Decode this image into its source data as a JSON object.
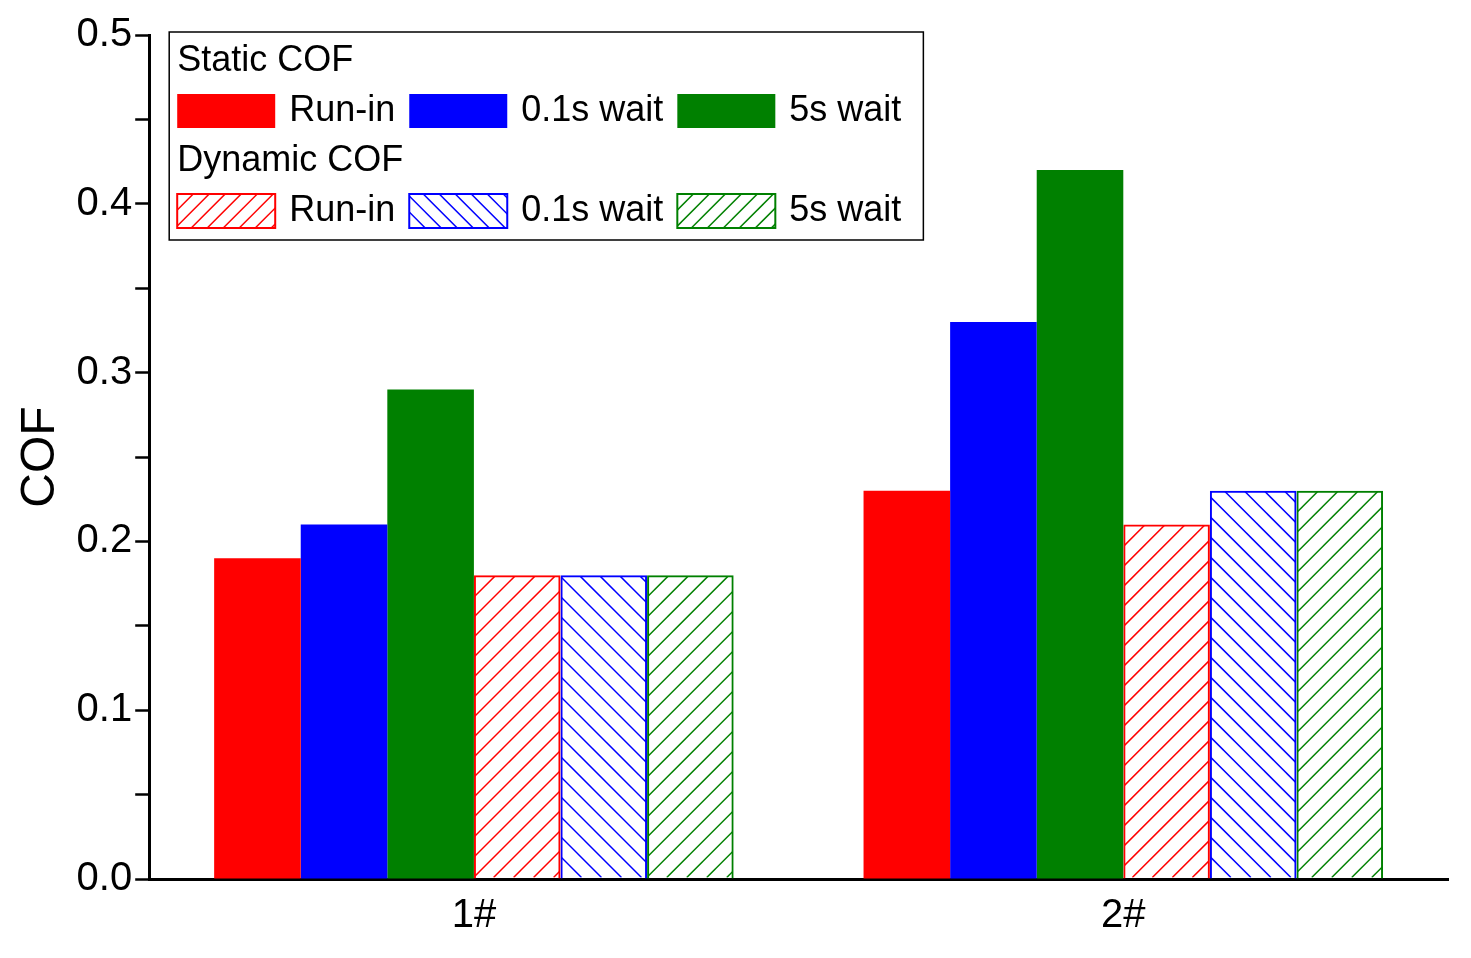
{
  "chart_data": {
    "type": "bar",
    "ylabel": "COF",
    "categories": [
      "1#",
      "2#"
    ],
    "ylim": [
      0,
      0.5
    ],
    "yticks": [
      {
        "value": 0,
        "label": "0.0"
      },
      {
        "value": 0.05,
        "label": null
      },
      {
        "value": 0.1,
        "label": "0.1"
      },
      {
        "value": 0.15,
        "label": null
      },
      {
        "value": 0.2,
        "label": "0.2"
      },
      {
        "value": 0.25,
        "label": null
      },
      {
        "value": 0.3,
        "label": "0.3"
      },
      {
        "value": 0.35,
        "label": null
      },
      {
        "value": 0.4,
        "label": "0.4"
      },
      {
        "value": 0.45,
        "label": null
      },
      {
        "value": 0.5,
        "label": "0.5"
      }
    ],
    "grid": false,
    "legend": "top left",
    "annotations": [
      "Static COF",
      "Dynamic COF"
    ],
    "series": [
      {
        "name": "Run-in",
        "color": "#ff0000",
        "values": [
          0.19,
          0.23
        ]
      },
      {
        "name": "0.1s wait",
        "color": "#0000ff",
        "values": [
          0.21,
          0.33
        ]
      },
      {
        "name": "5s wait",
        "color": "#008000",
        "values": [
          0.29,
          0.42
        ]
      },
      {
        "name": "Run-in",
        "color": "#ff0000",
        "values": [
          0.18,
          0.21
        ]
      },
      {
        "name": "0.1s wait",
        "color": "#0000ff",
        "values": [
          0.18,
          0.23
        ]
      },
      {
        "name": "5s wait",
        "color": "#008000",
        "values": [
          0.18,
          0.23
        ]
      }
    ]
  }
}
